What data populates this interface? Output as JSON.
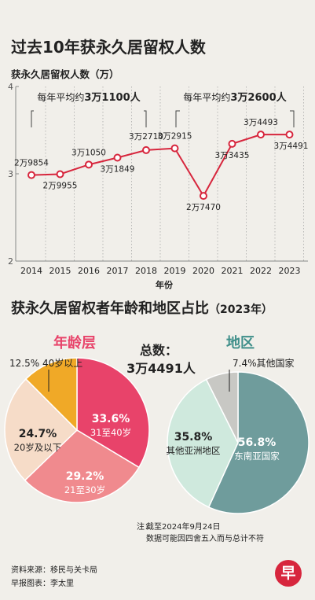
{
  "title": "过去10年获永久居留权人数",
  "chart_data": [
    {
      "type": "line",
      "title": "过去10年获永久居留权人数",
      "ylabel": "获永久居留权人数（万）",
      "xlabel": "年份",
      "ylim": [
        2,
        4
      ],
      "yticks": [
        "2",
        "3",
        "4"
      ],
      "categories": [
        "2014",
        "2015",
        "2016",
        "2017",
        "2018",
        "2019",
        "2020",
        "2021",
        "2022",
        "2023"
      ],
      "values": [
        29854,
        29955,
        31050,
        31849,
        32710,
        32915,
        27470,
        33435,
        34493,
        34491
      ],
      "point_labels": [
        "2万9854",
        "2万9955",
        "3万1050",
        "3万1849",
        "3万2710",
        "3万2915",
        "2万7470",
        "3万3435",
        "3万4493",
        "3万4491"
      ],
      "annotations": [
        {
          "prefix": "每年平均约",
          "value": "3万1100人"
        },
        {
          "prefix": "每年平均约",
          "value": "3万2600人"
        }
      ]
    },
    {
      "type": "pie",
      "title": "年龄层",
      "slices": [
        {
          "label": "31至40岁",
          "percent_label": "33.6%",
          "value": 33.6
        },
        {
          "label": "21至30岁",
          "percent_label": "29.2%",
          "value": 29.2
        },
        {
          "label": "20岁及以下",
          "percent_label": "24.7%",
          "value": 24.7
        },
        {
          "label": "40岁以上",
          "percent_label": "12.5%",
          "value": 12.5
        }
      ]
    },
    {
      "type": "pie",
      "title": "地区",
      "slices": [
        {
          "label": "东南亚国家",
          "percent_label": "56.8%",
          "value": 56.8
        },
        {
          "label": "其他亚洲地区",
          "percent_label": "35.8%",
          "value": 35.8
        },
        {
          "label": "其他国家",
          "percent_label": "7.4%",
          "value": 7.4
        }
      ]
    }
  ],
  "section2": {
    "title_main": "获永久居留权者年龄和地区占比",
    "title_year": "（2023年）",
    "age_title": "年龄层",
    "region_title": "地区",
    "total_label": "总数：",
    "total_value": "3万4491人"
  },
  "notes": {
    "note_prefix": "注：",
    "note_line1": "截至2024年9月24日",
    "note_line2": "数据可能因四舍五入而与总计不符",
    "source": "资料来源：移民与关卡局",
    "credit": "早报图表：李太里"
  },
  "logo": "早",
  "colors": {
    "line": "#d7263d",
    "age": [
      "#e8436a",
      "#f08a8e",
      "#f6dcc8",
      "#f0a927"
    ],
    "region": [
      "#6f9c9c",
      "#cfe9dd",
      "#c8c8c4"
    ]
  }
}
